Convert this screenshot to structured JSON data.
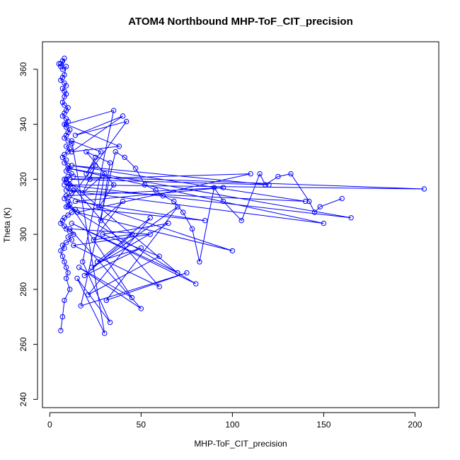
{
  "chart_data": {
    "type": "scatter",
    "title": "ATOM4 Northbound MHP-ToF_CIT_precision",
    "xlabel": "MHP-ToF_CIT_precision",
    "ylabel": "Theta (K)",
    "xlim": [
      -4,
      213
    ],
    "ylim": [
      237,
      370
    ],
    "xticks": [
      0,
      50,
      100,
      150,
      200
    ],
    "yticks": [
      240,
      260,
      280,
      300,
      320,
      340,
      360
    ],
    "grid": false,
    "legend": "none",
    "color": "#0000ff",
    "series": [
      {
        "x": [
          5,
          6,
          7,
          6,
          8,
          7,
          9,
          8,
          7,
          6,
          8,
          9,
          7,
          8,
          9,
          8,
          7,
          8,
          10,
          9,
          8,
          7,
          9,
          10,
          8,
          9,
          11,
          10,
          9,
          8,
          10,
          12,
          9,
          11,
          10,
          8,
          7,
          9,
          8,
          10,
          11,
          9,
          12,
          10,
          8,
          9,
          11,
          10,
          13,
          12,
          9,
          8,
          10,
          11,
          9,
          14,
          12,
          10,
          8,
          7,
          6,
          8,
          9,
          11,
          13,
          10,
          12,
          9,
          7,
          8,
          6,
          7,
          8,
          9,
          10,
          9,
          11,
          8,
          7,
          6
        ],
        "y": [
          362,
          361,
          363,
          362,
          364,
          360,
          361,
          358,
          357,
          356,
          355,
          354,
          353,
          352,
          351,
          350,
          348,
          347,
          346,
          345,
          344,
          343,
          342,
          341,
          340,
          339,
          338,
          337,
          336,
          335,
          334,
          333,
          332,
          331,
          330,
          329,
          328,
          327,
          326,
          325,
          324,
          323,
          322,
          321,
          320,
          319,
          318,
          317,
          316,
          315,
          314,
          313,
          312,
          311,
          310,
          309,
          308,
          307,
          306,
          305,
          304,
          303,
          302,
          301,
          300,
          299,
          298,
          297,
          296,
          295,
          294,
          292,
          290,
          288,
          286,
          284,
          280,
          276,
          270,
          265
        ]
      },
      {
        "x": [
          13,
          205,
          8,
          165,
          10,
          150,
          9,
          140,
          12,
          120,
          11,
          110,
          15,
          100,
          9,
          95,
          14,
          85,
          10,
          80,
          12,
          70,
          9,
          60,
          13,
          55,
          11,
          50,
          16,
          45,
          10,
          42,
          14,
          40,
          12,
          38,
          9,
          35,
          18,
          33,
          15,
          30,
          12,
          28,
          20,
          25
        ],
        "y": [
          321,
          316.5,
          318,
          306,
          324,
          304,
          316,
          312,
          325,
          318,
          320,
          322,
          308,
          294,
          314,
          317,
          312,
          305,
          310,
          282,
          304,
          286,
          320,
          281,
          296,
          300,
          302,
          273,
          288,
          277,
          312,
          341,
          336,
          343,
          330,
          332,
          340,
          345,
          290,
          268,
          284,
          264,
          334,
          330,
          322,
          328
        ]
      },
      {
        "x": [
          22,
          25,
          18,
          30,
          27,
          35,
          20,
          33,
          28,
          40,
          24,
          45,
          19,
          50,
          26,
          55,
          21,
          60,
          29,
          65,
          23,
          70,
          31,
          75,
          17,
          36,
          41,
          47,
          52,
          58,
          62,
          68,
          73,
          78,
          82,
          90,
          95,
          105,
          115,
          118,
          125,
          132,
          142,
          145,
          148,
          160
        ],
        "y": [
          320,
          325,
          315,
          322,
          310,
          318,
          330,
          326,
          305,
          312,
          298,
          300,
          285,
          295,
          290,
          306,
          278,
          292,
          300,
          304,
          288,
          310,
          276,
          286,
          274,
          330,
          328,
          324,
          318,
          316,
          314,
          312,
          308,
          302,
          290,
          317,
          312,
          305,
          322,
          318,
          321,
          322,
          312,
          308,
          310,
          313
        ]
      }
    ]
  }
}
